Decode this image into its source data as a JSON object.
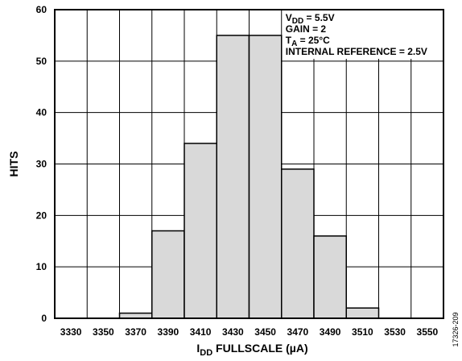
{
  "chart_data": {
    "type": "bar",
    "categories": [
      "3330",
      "3350",
      "3370",
      "3390",
      "3410",
      "3430",
      "3450",
      "3470",
      "3490",
      "3510",
      "3530",
      "3550"
    ],
    "values": [
      0,
      0,
      1,
      17,
      34,
      55,
      55,
      29,
      16,
      2,
      0,
      0
    ],
    "ylim": [
      0,
      60
    ],
    "yticks": [
      0,
      10,
      20,
      30,
      40,
      50,
      60
    ],
    "ylabel": "HITS",
    "xlabel": {
      "main": "I",
      "sub": "DD",
      "rest": " FULLSCALE (µA)"
    },
    "grid": true,
    "bar_color": "#d9d9d9",
    "annotations": [
      {
        "main": "V",
        "sub": "DD",
        "rest": " = 5.5V"
      },
      {
        "main": "GAIN = 2",
        "sub": "",
        "rest": ""
      },
      {
        "main": "T",
        "sub": "A",
        "rest": " = 25°C"
      },
      {
        "main": "INTERNAL REFERENCE = 2.5V",
        "sub": "",
        "rest": ""
      }
    ],
    "figure_id": "17326-209"
  }
}
